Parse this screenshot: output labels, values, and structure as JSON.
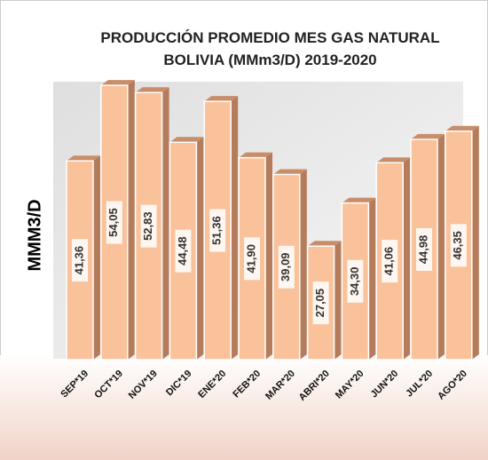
{
  "chart_data": {
    "type": "bar3d",
    "title": "PRODUCCIÓN PROMEDIO MES GAS NATURAL BOLIVIA (MMm3/D) 2019-2020",
    "y_label": "MMM3/D",
    "categories": [
      "SEP*19",
      "OCT*19",
      "NOV*19",
      "DIC*19",
      "ENE*20",
      "FEB*20",
      "MAR*20",
      "ABRI*20",
      "MAY*20",
      "JUN*20",
      "JUL*20",
      "AGO*20"
    ],
    "values": [
      41.36,
      54.05,
      52.83,
      44.48,
      51.36,
      41.9,
      39.09,
      27.05,
      34.3,
      41.06,
      44.98,
      46.35
    ],
    "value_labels": [
      "41,36",
      "54,05",
      "52,83",
      "44,48",
      "51,36",
      "41,90",
      "39,09",
      "27,05",
      "34,30",
      "41,06",
      "44,98",
      "46,35"
    ],
    "color": "#f9c29b",
    "ylim": [
      8,
      56
    ]
  }
}
